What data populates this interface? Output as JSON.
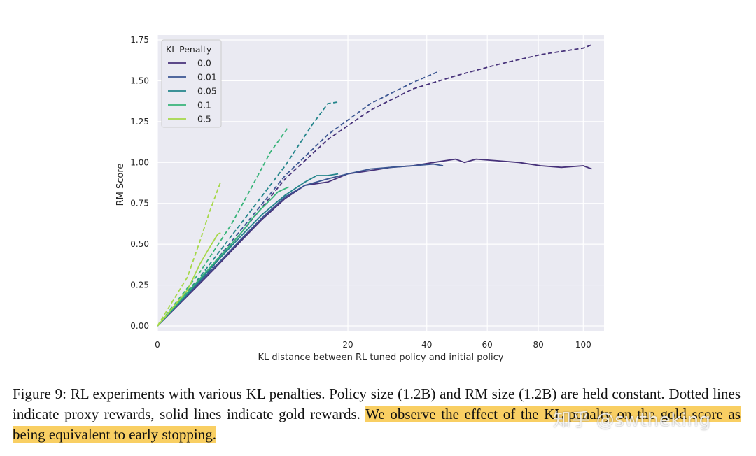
{
  "chart_data": {
    "type": "line",
    "xlabel": "KL distance between RL tuned policy and initial policy",
    "ylabel": "RM Score",
    "x_scale": "sqrt",
    "xlim": [
      0,
      110
    ],
    "ylim": [
      -0.03,
      1.78
    ],
    "x_ticks": [
      0,
      20,
      40,
      60,
      80,
      100
    ],
    "y_ticks": [
      0.0,
      0.25,
      0.5,
      0.75,
      1.0,
      1.25,
      1.5,
      1.75
    ],
    "x_tick_labels": [
      "0",
      "20",
      "40",
      "60",
      "80",
      "100"
    ],
    "y_tick_labels": [
      "0.00",
      "0.25",
      "0.50",
      "0.75",
      "1.00",
      "1.25",
      "1.50",
      "1.75"
    ],
    "grid": true,
    "legend": {
      "title": "KL Penalty",
      "placement": "top-left"
    },
    "series": [
      {
        "name": "0.0",
        "color": "#47327a",
        "proxy": {
          "x": [
            0,
            1,
            4,
            9,
            16,
            25,
            36,
            49,
            64,
            81,
            100,
            104
          ],
          "y": [
            0,
            0.27,
            0.58,
            0.9,
            1.14,
            1.32,
            1.45,
            1.53,
            1.6,
            1.66,
            1.7,
            1.72
          ]
        },
        "gold": {
          "x": [
            0,
            1,
            2,
            4,
            6,
            9,
            12,
            16,
            20,
            25,
            30,
            36,
            42,
            49,
            52,
            56,
            64,
            72,
            81,
            90,
            100,
            104
          ],
          "y": [
            0,
            0.26,
            0.37,
            0.53,
            0.65,
            0.78,
            0.86,
            0.88,
            0.93,
            0.95,
            0.97,
            0.98,
            1.0,
            1.02,
            1.0,
            1.02,
            1.01,
            1.0,
            0.98,
            0.97,
            0.98,
            0.96
          ]
        }
      },
      {
        "name": "0.01",
        "color": "#3b5692",
        "proxy": {
          "x": [
            0,
            1,
            4,
            9,
            16,
            25,
            36,
            44
          ],
          "y": [
            0,
            0.28,
            0.6,
            0.92,
            1.17,
            1.36,
            1.49,
            1.56
          ]
        },
        "gold": {
          "x": [
            0,
            1,
            2,
            4,
            6,
            9,
            12,
            16,
            20,
            25,
            30,
            36,
            42,
            45
          ],
          "y": [
            0,
            0.27,
            0.38,
            0.54,
            0.66,
            0.79,
            0.86,
            0.9,
            0.93,
            0.96,
            0.97,
            0.98,
            0.99,
            0.98
          ]
        }
      },
      {
        "name": "0.05",
        "color": "#24858b",
        "proxy": {
          "x": [
            0,
            1,
            4,
            9,
            13,
            16,
            18
          ],
          "y": [
            0,
            0.3,
            0.64,
            0.98,
            1.22,
            1.36,
            1.37
          ]
        },
        "gold": {
          "x": [
            0,
            1,
            2,
            4,
            6,
            9,
            12,
            14,
            16,
            18
          ],
          "y": [
            0,
            0.28,
            0.4,
            0.56,
            0.68,
            0.8,
            0.88,
            0.92,
            0.92,
            0.93
          ]
        }
      },
      {
        "name": "0.1",
        "color": "#39b47a",
        "proxy": {
          "x": [
            0,
            1,
            3,
            5,
            7,
            9.5
          ],
          "y": [
            0,
            0.33,
            0.62,
            0.86,
            1.06,
            1.22
          ]
        },
        "gold": {
          "x": [
            0,
            1,
            2,
            3,
            4,
            5,
            6,
            7,
            8,
            9.5
          ],
          "y": [
            0,
            0.29,
            0.41,
            0.5,
            0.58,
            0.66,
            0.72,
            0.77,
            0.82,
            0.85
          ]
        }
      },
      {
        "name": "0.5",
        "color": "#a6d84a",
        "proxy": {
          "x": [
            0,
            0.5,
            1,
            1.5,
            2.2
          ],
          "y": [
            0,
            0.3,
            0.52,
            0.7,
            0.88
          ]
        },
        "gold": {
          "x": [
            0,
            0.5,
            1,
            1.5,
            2.0,
            2.2
          ],
          "y": [
            0,
            0.22,
            0.38,
            0.48,
            0.56,
            0.57
          ]
        }
      }
    ]
  },
  "caption": {
    "part1": "Figure 9: RL experiments with various KL penalties. Policy size (1.2B) and RM size (1.2B) are held constant. Dotted lines indicate proxy rewards, solid lines indicate gold rewards.",
    "part2": "We observe the effect of the KL penalty on the gold score as being equivalent to early stopping."
  },
  "watermark": "知乎 @swtheking"
}
